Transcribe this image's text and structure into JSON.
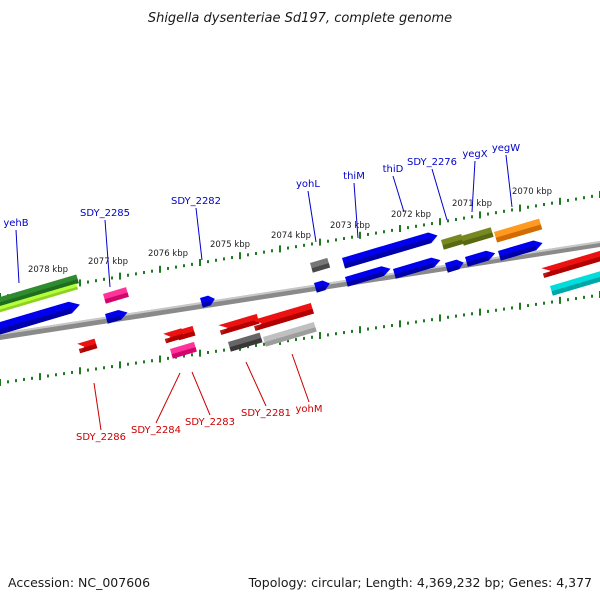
{
  "title": "Shigella dysenteriae Sd197, complete genome",
  "footer": {
    "accession": "Accession: NC_007606",
    "summary": "Topology: circular; Length: 4,369,232 bp; Genes: 4,377"
  },
  "colors": {
    "forward_label": "#0000cc",
    "reverse_label": "#cc0000",
    "tick": "#1e7a1e",
    "backbone": "#8a8a8a"
  },
  "scale_labels": [
    "2078 kbp",
    "2077 kbp",
    "2076 kbp",
    "2075 kbp",
    "2074 kbp",
    "2073 kbp",
    "2072 kbp",
    "2071 kbp",
    "2070 kbp"
  ],
  "forward_genes": [
    "yehB",
    "SDY_2285",
    "SDY_2282",
    "yohL",
    "thiM",
    "thiD",
    "SDY_2276",
    "yegX",
    "yegW"
  ],
  "reverse_genes": [
    "SDY_2286",
    "SDY_2284",
    "SDY_2283",
    "SDY_2281",
    "yohM"
  ]
}
